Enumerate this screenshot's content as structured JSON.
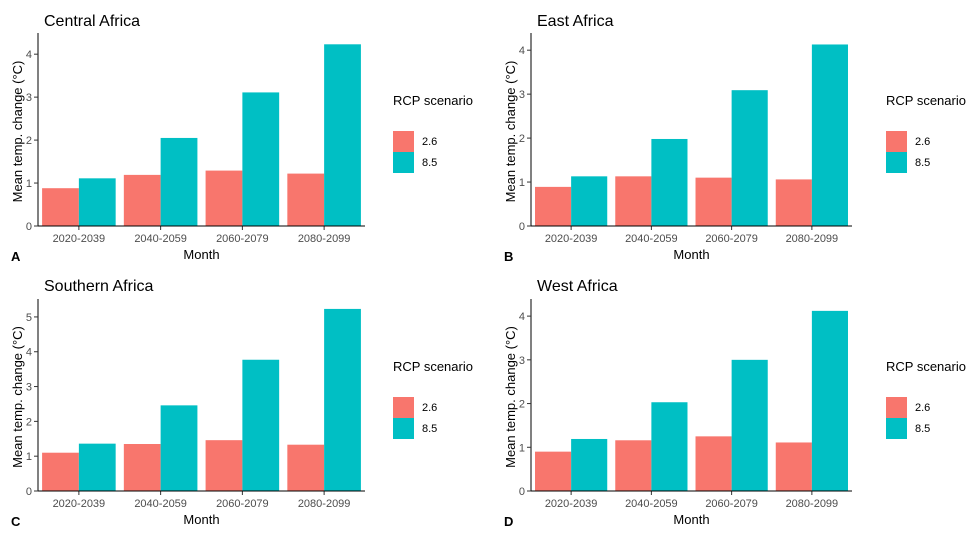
{
  "colors": {
    "rcp26": "#F8766D",
    "rcp85": "#00BFC4"
  },
  "legend": {
    "title": "RCP scenario",
    "labels": [
      "2.6",
      "8.5"
    ]
  },
  "chart_data": [
    {
      "type": "bar",
      "panel": "A",
      "title": "Central Africa",
      "xlabel": "Month",
      "ylabel": "Mean temp. change (°C)",
      "categories": [
        "2020-2039",
        "2040-2059",
        "2060-2079",
        "2080-2099"
      ],
      "series": [
        {
          "name": "2.6",
          "values": [
            0.88,
            1.19,
            1.29,
            1.22
          ]
        },
        {
          "name": "8.5",
          "values": [
            1.11,
            2.05,
            3.11,
            4.23
          ]
        }
      ],
      "yticks": [
        0,
        1,
        2,
        3,
        4
      ],
      "ylim": [
        0,
        4.4
      ]
    },
    {
      "type": "bar",
      "panel": "B",
      "title": "East Africa",
      "xlabel": "Month",
      "ylabel": "Mean temp. change (°C)",
      "categories": [
        "2020-2039",
        "2040-2059",
        "2060-2079",
        "2080-2099"
      ],
      "series": [
        {
          "name": "2.6",
          "values": [
            0.89,
            1.13,
            1.1,
            1.06
          ]
        },
        {
          "name": "8.5",
          "values": [
            1.13,
            1.98,
            3.09,
            4.13
          ]
        }
      ],
      "yticks": [
        0,
        1,
        2,
        3,
        4
      ],
      "ylim": [
        0,
        4.3
      ]
    },
    {
      "type": "bar",
      "panel": "C",
      "title": "Southern Africa",
      "xlabel": "Month",
      "ylabel": "Mean temp. change (°C)",
      "categories": [
        "2020-2039",
        "2040-2059",
        "2060-2079",
        "2080-2099"
      ],
      "series": [
        {
          "name": "2.6",
          "values": [
            1.1,
            1.35,
            1.46,
            1.33
          ]
        },
        {
          "name": "8.5",
          "values": [
            1.36,
            2.46,
            3.77,
            5.23
          ]
        }
      ],
      "yticks": [
        0,
        1,
        2,
        3,
        4,
        5
      ],
      "ylim": [
        0,
        5.4
      ]
    },
    {
      "type": "bar",
      "panel": "D",
      "title": "West Africa",
      "xlabel": "Month",
      "ylabel": "Mean temp. change (°C)",
      "categories": [
        "2020-2039",
        "2040-2059",
        "2060-2079",
        "2080-2099"
      ],
      "series": [
        {
          "name": "2.6",
          "values": [
            0.9,
            1.16,
            1.25,
            1.11
          ]
        },
        {
          "name": "8.5",
          "values": [
            1.19,
            2.03,
            3.0,
            4.12
          ]
        }
      ],
      "yticks": [
        0,
        1,
        2,
        3,
        4
      ],
      "ylim": [
        0,
        4.3
      ]
    }
  ]
}
